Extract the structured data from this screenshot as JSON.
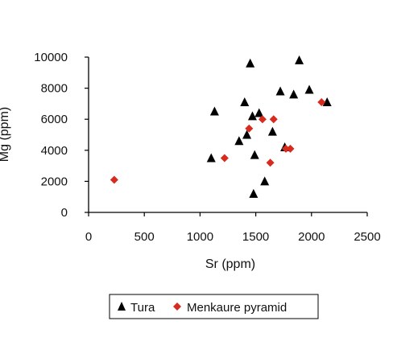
{
  "chart_data": {
    "type": "scatter",
    "xlabel": "Sr (ppm)",
    "ylabel": "Mg (ppm)",
    "xlim": [
      0,
      2500
    ],
    "ylim": [
      0,
      10000
    ],
    "xticks": [
      "0",
      "500",
      "1000",
      "1500",
      "2000",
      "2500"
    ],
    "yticks": [
      "0",
      "2000",
      "4000",
      "6000",
      "8000",
      "10000"
    ],
    "grid": false,
    "legend_position": "bottom",
    "series": [
      {
        "name": "Tura",
        "marker": "triangle",
        "color": "#000000",
        "points": [
          {
            "x": 1100,
            "y": 3500
          },
          {
            "x": 1130,
            "y": 6500
          },
          {
            "x": 1350,
            "y": 4600
          },
          {
            "x": 1400,
            "y": 7100
          },
          {
            "x": 1420,
            "y": 5000
          },
          {
            "x": 1450,
            "y": 9600
          },
          {
            "x": 1470,
            "y": 6200
          },
          {
            "x": 1480,
            "y": 1200
          },
          {
            "x": 1490,
            "y": 3700
          },
          {
            "x": 1530,
            "y": 6400
          },
          {
            "x": 1580,
            "y": 2000
          },
          {
            "x": 1650,
            "y": 5200
          },
          {
            "x": 1720,
            "y": 7800
          },
          {
            "x": 1760,
            "y": 4200
          },
          {
            "x": 1840,
            "y": 7600
          },
          {
            "x": 1890,
            "y": 9800
          },
          {
            "x": 1980,
            "y": 7900
          },
          {
            "x": 2140,
            "y": 7100
          }
        ]
      },
      {
        "name": "Menkaure pyramid",
        "marker": "diamond",
        "color": "#d62b1e",
        "points": [
          {
            "x": 230,
            "y": 2100
          },
          {
            "x": 1220,
            "y": 3500
          },
          {
            "x": 1440,
            "y": 5400
          },
          {
            "x": 1560,
            "y": 6000
          },
          {
            "x": 1630,
            "y": 3200
          },
          {
            "x": 1660,
            "y": 6000
          },
          {
            "x": 1770,
            "y": 4100
          },
          {
            "x": 1810,
            "y": 4100
          },
          {
            "x": 2090,
            "y": 7100
          }
        ]
      }
    ]
  }
}
